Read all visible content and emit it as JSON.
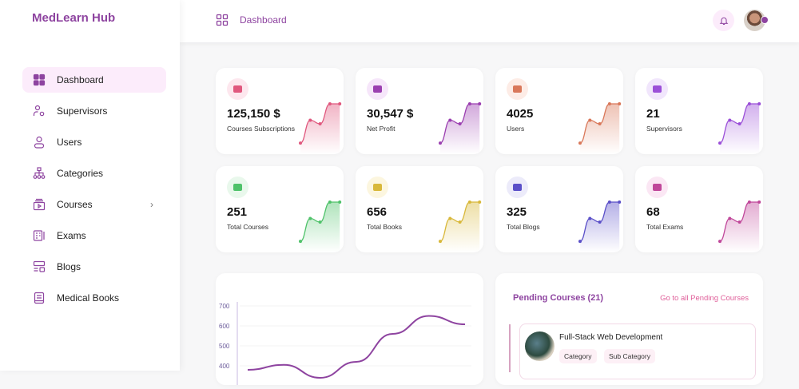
{
  "app": {
    "title": "MedLearn Hub"
  },
  "sidebar": {
    "items": [
      {
        "label": "Dashboard",
        "icon": "grid-icon",
        "active": true
      },
      {
        "label": "Supervisors",
        "icon": "user-gear-icon"
      },
      {
        "label": "Users",
        "icon": "user-icon"
      },
      {
        "label": "Categories",
        "icon": "hierarchy-icon"
      },
      {
        "label": "Courses",
        "icon": "video-stack-icon",
        "has_submenu": true
      },
      {
        "label": "Exams",
        "icon": "exam-icon"
      },
      {
        "label": "Blogs",
        "icon": "blog-icon"
      },
      {
        "label": "Medical Books",
        "icon": "book-icon"
      }
    ]
  },
  "header": {
    "breadcrumb": "Dashboard",
    "icons": [
      "bell-icon",
      "avatar"
    ]
  },
  "stats": [
    {
      "value": "125,150 $",
      "label": "Courses Subscriptions",
      "color": "#e0587e",
      "bg": "#fde7ee"
    },
    {
      "value": "30,547 $",
      "label": "Net Profit",
      "color": "#9b3fb0",
      "bg": "#f6e6fa"
    },
    {
      "value": "4025",
      "label": "Users",
      "color": "#d9785a",
      "bg": "#fdece6"
    },
    {
      "value": "21",
      "label": "Supervisors",
      "color": "#9b4fd8",
      "bg": "#f1e6fc"
    },
    {
      "value": "251",
      "label": "Total Courses",
      "color": "#4fc26a",
      "bg": "#e9f8ec"
    },
    {
      "value": "656",
      "label": "Total Books",
      "color": "#d8b83a",
      "bg": "#fcf6df"
    },
    {
      "value": "325",
      "label": "Total Blogs",
      "color": "#5a4fc8",
      "bg": "#ecebfa"
    },
    {
      "value": "68",
      "label": "Total Exams",
      "color": "#c0479a",
      "bg": "#fbe7f4"
    }
  ],
  "sparkline_values": [
    10,
    42,
    37,
    65,
    65
  ],
  "chart_data": {
    "type": "line",
    "yticks": [
      "700",
      "600",
      "500",
      "400"
    ],
    "ylim": [
      400,
      700
    ],
    "series": [
      {
        "values": [
          380,
          405,
          340,
          420,
          560,
          650,
          608
        ]
      }
    ],
    "color": "#8e44a0",
    "grid": true
  },
  "pending": {
    "title": "Pending Courses (21)",
    "link": "Go to all Pending Courses",
    "courses": [
      {
        "title": "Full-Stack Web Development",
        "tags": [
          "Category",
          "Sub Category"
        ]
      }
    ]
  }
}
